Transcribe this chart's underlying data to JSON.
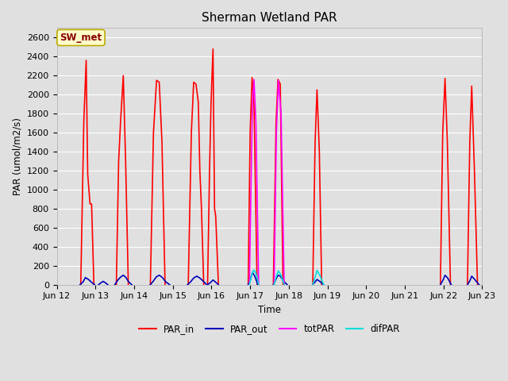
{
  "title": "Sherman Wetland PAR",
  "ylabel": "PAR (umol/m2/s)",
  "xlabel": "Time",
  "ylim": [
    0,
    2700
  ],
  "yticks": [
    0,
    200,
    400,
    600,
    800,
    1000,
    1200,
    1400,
    1600,
    1800,
    2000,
    2200,
    2400,
    2600
  ],
  "xtick_labels": [
    "Jun 12",
    "Jun 13",
    "Jun 14",
    "Jun 15",
    "Jun 16",
    "Jun 17",
    "Jun 18",
    "Jun 19",
    "Jun 20",
    "Jun 21",
    "Jun 22",
    "Jun 23"
  ],
  "bg_color": "#e0e0e0",
  "grid_color": "#ffffff",
  "annotation_text": "SW_met",
  "annotation_bg": "#ffffcc",
  "annotation_edge": "#bbaa00",
  "annotation_text_color": "#880000",
  "colors": {
    "PAR_in": "#ff0000",
    "PAR_out": "#0000bb",
    "totPAR": "#ff00ff",
    "difPAR": "#00dddd"
  },
  "par_in_segments": [
    [
      12.62,
      0,
      12.7,
      1730,
      12.76,
      2360,
      12.8,
      1160,
      12.86,
      850,
      12.9,
      850,
      12.96,
      0
    ],
    [
      13.54,
      0,
      13.6,
      1300,
      13.65,
      1720,
      13.72,
      2200,
      13.78,
      1300,
      13.85,
      0
    ],
    [
      14.42,
      0,
      14.5,
      1600,
      14.58,
      2150,
      14.65,
      2130,
      14.72,
      1500,
      14.8,
      0
    ],
    [
      15.4,
      0,
      15.48,
      1600,
      15.54,
      2130,
      15.6,
      2110,
      15.66,
      1920,
      15.7,
      1200,
      15.74,
      820,
      15.8,
      0
    ],
    [
      15.9,
      0,
      15.95,
      1200,
      15.99,
      1920,
      16.04,
      2480,
      16.08,
      800,
      16.11,
      720,
      16.18,
      0
    ],
    [
      16.95,
      0,
      17.0,
      1600,
      17.05,
      2180,
      17.1,
      1900,
      17.18,
      0
    ],
    [
      17.6,
      0,
      17.67,
      1700,
      17.72,
      2160,
      17.78,
      2110,
      17.85,
      0
    ],
    [
      18.62,
      0,
      18.68,
      1500,
      18.73,
      2050,
      18.79,
      1400,
      18.85,
      0
    ],
    [
      21.92,
      0,
      21.98,
      1600,
      22.04,
      2170,
      22.1,
      1500,
      22.18,
      0
    ],
    [
      22.62,
      0,
      22.68,
      1500,
      22.73,
      2090,
      22.8,
      1200,
      22.88,
      0
    ]
  ],
  "par_out_segments": [
    [
      12.6,
      0,
      12.68,
      30,
      12.74,
      75,
      12.82,
      55,
      12.9,
      25,
      12.98,
      0
    ],
    [
      13.08,
      0,
      13.14,
      20,
      13.2,
      35,
      13.26,
      20,
      13.32,
      0
    ],
    [
      13.5,
      0,
      13.58,
      50,
      13.65,
      80,
      13.72,
      100,
      13.78,
      80,
      13.86,
      30,
      13.94,
      0
    ],
    [
      14.42,
      0,
      14.5,
      40,
      14.58,
      85,
      14.65,
      100,
      14.72,
      80,
      14.82,
      30,
      14.92,
      0
    ],
    [
      15.38,
      0,
      15.46,
      30,
      15.54,
      70,
      15.62,
      90,
      15.7,
      70,
      15.78,
      40,
      15.88,
      0
    ],
    [
      15.9,
      0,
      15.98,
      25,
      16.04,
      50,
      16.1,
      30,
      16.18,
      0
    ],
    [
      16.95,
      0,
      17.01,
      60,
      17.06,
      130,
      17.12,
      90,
      17.2,
      0
    ],
    [
      17.6,
      0,
      17.66,
      50,
      17.72,
      100,
      17.78,
      90,
      17.86,
      40,
      17.96,
      0
    ],
    [
      18.62,
      0,
      18.68,
      30,
      18.73,
      55,
      18.8,
      35,
      18.9,
      0
    ],
    [
      21.92,
      0,
      21.99,
      50,
      22.04,
      100,
      22.11,
      70,
      22.2,
      0
    ],
    [
      22.62,
      0,
      22.68,
      40,
      22.73,
      90,
      22.82,
      50,
      22.92,
      0
    ]
  ],
  "totpar_segments": [
    [
      16.98,
      0,
      17.03,
      1200,
      17.06,
      1920,
      17.1,
      2160,
      17.15,
      1700,
      17.22,
      0
    ],
    [
      17.62,
      0,
      17.68,
      1600,
      17.73,
      2150,
      17.8,
      1800,
      17.88,
      0
    ]
  ],
  "difpar_segments": [
    [
      16.98,
      0,
      17.03,
      80,
      17.06,
      130,
      17.1,
      155,
      17.15,
      120,
      17.22,
      0
    ],
    [
      17.62,
      0,
      17.68,
      90,
      17.73,
      145,
      17.8,
      100,
      17.88,
      0
    ],
    [
      18.62,
      0,
      18.68,
      80,
      18.73,
      150,
      18.8,
      100,
      18.9,
      0
    ]
  ]
}
